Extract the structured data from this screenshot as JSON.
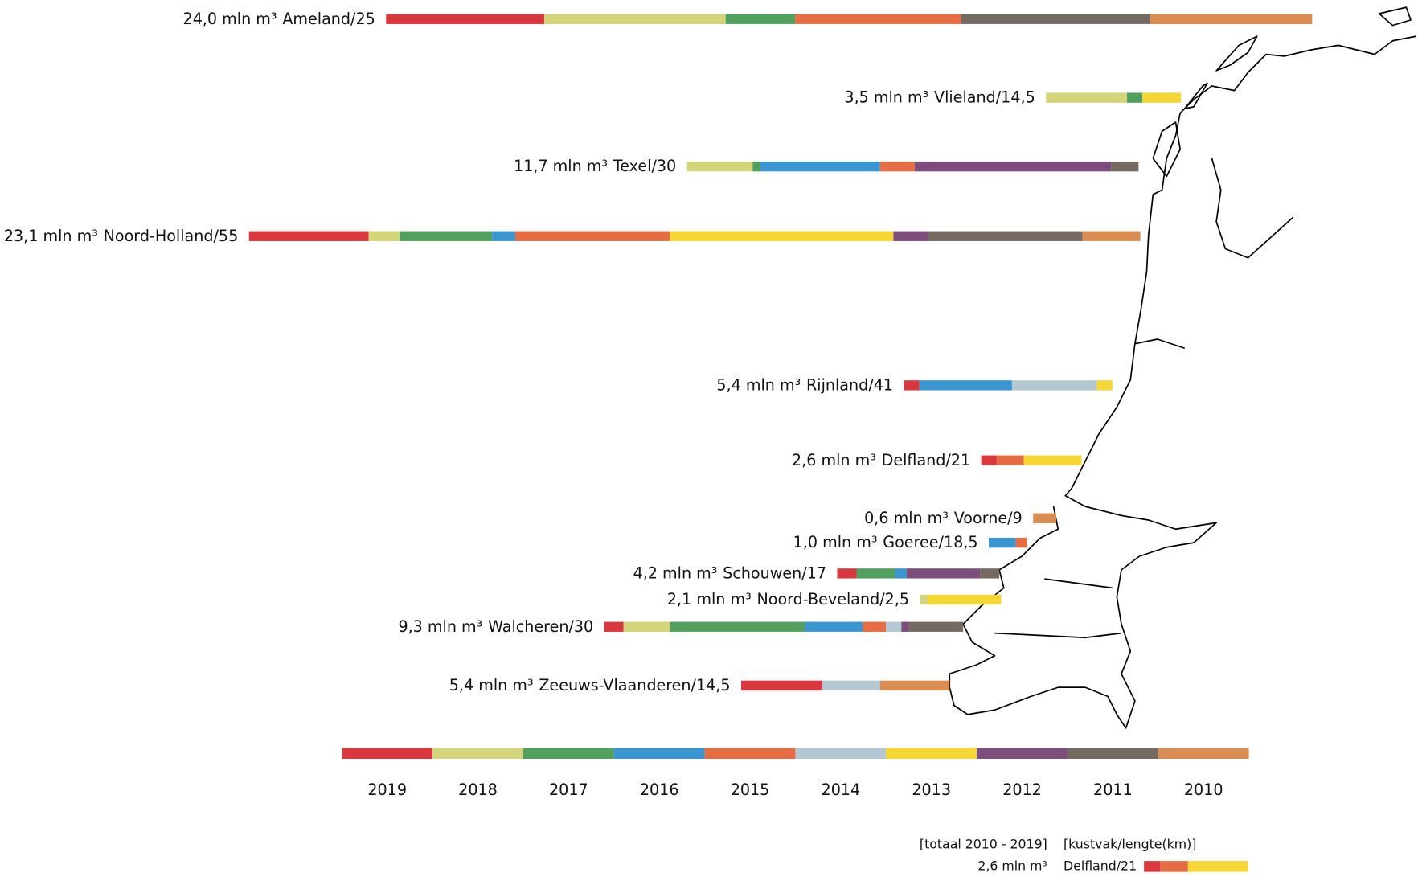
{
  "chart_data": {
    "type": "bar",
    "orientation": "horizontal",
    "stacked": true,
    "categories": [
      "Ameland/25",
      "Vlieland/14,5",
      "Texel/30",
      "Noord-Holland/55",
      "Rijnland/41",
      "Delfland/21",
      "Voorne/9",
      "Goeree/18,5",
      "Schouwen/17",
      "Noord-Beveland/2,5",
      "Walcheren/30",
      "Zeeuws-Vlaanderen/14,5"
    ],
    "total_labels": [
      "24,0 mln m³",
      "3,5 mln m³",
      "11,7 mln m³",
      "23,1 mln m³",
      "5,4 mln m³",
      "2,6 mln m³",
      "0,6 mln m³",
      "1,0 mln m³",
      "4,2 mln m³",
      "2,1 mln m³",
      "9,3 mln m³",
      "5,4 mln m³"
    ],
    "series": [
      {
        "name": "2019",
        "color": "#d9383f",
        "values": [
          4.1,
          0,
          0,
          3.1,
          0.4,
          0.4,
          0,
          0,
          0.5,
          0,
          0.5,
          2.1
        ]
      },
      {
        "name": "2018",
        "color": "#d4d47a",
        "values": [
          4.7,
          2.1,
          1.7,
          0.8,
          0,
          0,
          0,
          0,
          0,
          0.2,
          1.2,
          0
        ]
      },
      {
        "name": "2017",
        "color": "#52a05e",
        "values": [
          1.8,
          0.4,
          0.2,
          2.4,
          0,
          0,
          0,
          0,
          1.0,
          0,
          3.5,
          0
        ]
      },
      {
        "name": "2016",
        "color": "#3a95d1",
        "values": [
          0,
          0,
          3.1,
          0.6,
          2.4,
          0,
          0,
          0.7,
          0.3,
          0,
          1.5,
          0
        ]
      },
      {
        "name": "2015",
        "color": "#e46d43",
        "values": [
          4.3,
          0,
          0.9,
          4.0,
          0,
          0.7,
          0,
          0.3,
          0,
          0,
          0.6,
          0
        ]
      },
      {
        "name": "2014",
        "color": "#b3c8d2",
        "values": [
          0,
          0,
          0,
          0,
          2.2,
          0,
          0,
          0,
          0,
          0,
          0.4,
          1.5
        ]
      },
      {
        "name": "2013",
        "color": "#f5d634",
        "values": [
          0,
          1.0,
          0,
          5.8,
          0.4,
          1.5,
          0,
          0,
          0,
          1.9,
          0,
          0
        ]
      },
      {
        "name": "2012",
        "color": "#7d4e7c",
        "values": [
          0,
          0,
          5.1,
          0.9,
          0,
          0,
          0,
          0,
          1.9,
          0,
          0.2,
          0
        ]
      },
      {
        "name": "2011",
        "color": "#756a62",
        "values": [
          4.9,
          0,
          0.7,
          4.0,
          0,
          0,
          0,
          0,
          0.5,
          0,
          1.4,
          0
        ]
      },
      {
        "name": "2010",
        "color": "#d98d53",
        "values": [
          4.2,
          0,
          0,
          1.5,
          0,
          0,
          0.6,
          0,
          0,
          0,
          0,
          1.8
        ]
      }
    ],
    "legend_note": {
      "total_header": "[totaal 2010 - 2019]",
      "name_header": "[kustvak/lengte(km)]"
    }
  }
}
